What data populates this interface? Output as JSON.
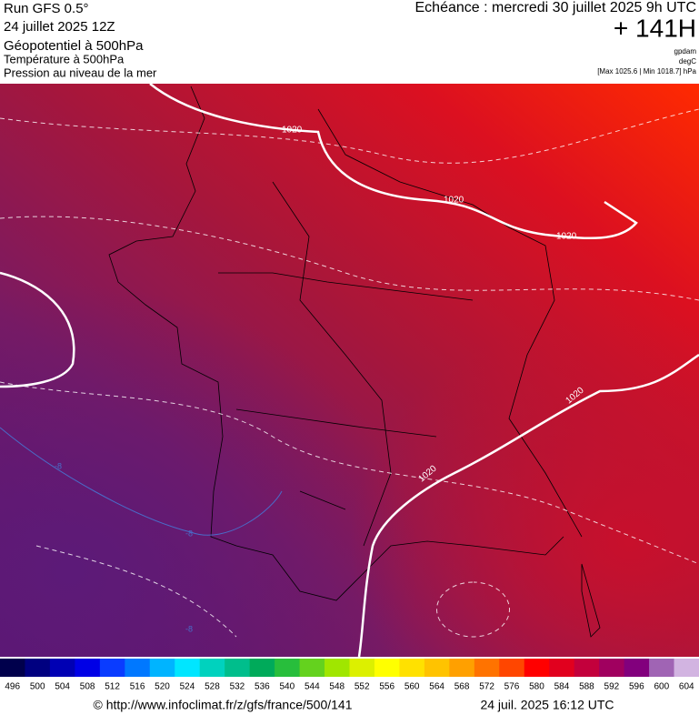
{
  "header": {
    "run": "Run GFS 0.5°",
    "run_date": "24 juillet 2025 12Z",
    "title": "Géopotentiel à 500hPa",
    "subtitle_temperature": "Température à 500hPa",
    "subtitle_pressure": "Pression au niveau de la mer",
    "valid_time": "Echéance : mercredi 30 juillet 2025 9h UTC",
    "lead_time": "+ 141H",
    "unit_geopotential": "gpdam",
    "unit_temperature": "degC",
    "pressure_range": "[Max 1025.6 | Min 1018.7] hPa"
  },
  "map": {
    "isobar_labels": [
      "1020",
      "1020",
      "1020",
      "1020",
      "1020"
    ],
    "isotherm_labels": [
      "-8",
      "-8",
      "-8"
    ]
  },
  "colorbar": {
    "values": [
      496,
      500,
      504,
      508,
      512,
      516,
      520,
      524,
      528,
      532,
      536,
      540,
      544,
      548,
      552,
      556,
      560,
      564,
      568,
      572,
      576,
      580,
      584,
      588,
      592,
      596,
      600,
      604
    ],
    "colors": [
      "#00004c",
      "#000080",
      "#0000b4",
      "#0000e6",
      "#0a3cff",
      "#0078ff",
      "#00b4ff",
      "#00e6ff",
      "#00d2be",
      "#00be8c",
      "#00aa5a",
      "#28be3c",
      "#64d21e",
      "#a0e600",
      "#dcf000",
      "#ffff00",
      "#ffe100",
      "#ffc300",
      "#ffa000",
      "#ff7300",
      "#ff4600",
      "#ff0000",
      "#e1001e",
      "#c3003c",
      "#a0005f",
      "#82007d",
      "#a064b4",
      "#d2b4e1"
    ]
  },
  "footer": {
    "url": "© http://www.infoclimat.fr/z/gfs/france/500/141",
    "timestamp": "24 juil. 2025 16:12 UTC"
  }
}
